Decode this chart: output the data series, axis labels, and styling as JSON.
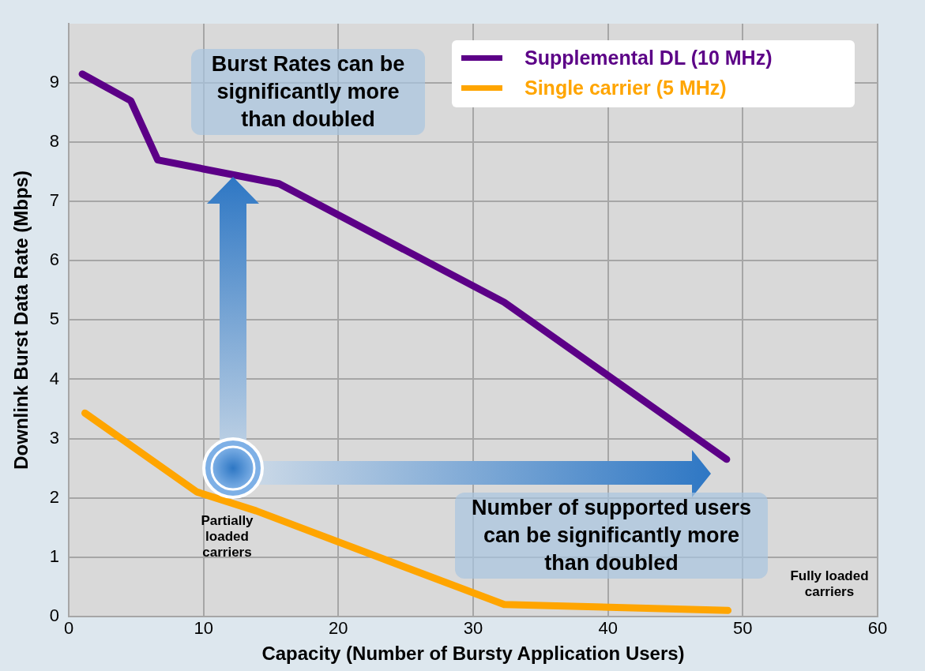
{
  "chart_data": {
    "type": "line",
    "xlabel": "Capacity (Number of Bursty Application Users)",
    "ylabel": "Downlink Burst Data Rate (Mbps)",
    "xlim": [
      0,
      60
    ],
    "xticks": [
      0,
      10,
      20,
      30,
      40,
      50,
      60
    ],
    "ylim": [
      0,
      10
    ],
    "yticks": [
      0,
      1,
      2,
      3,
      4,
      5,
      6,
      7,
      8,
      9
    ],
    "grid": true,
    "legend": "top right",
    "marker": "none",
    "line_style": "solid",
    "series": [
      {
        "name": "Supplemental DL (10 MHz)",
        "color": "#5c0087",
        "x": [
          1,
          4.6,
          6.6,
          15.6,
          32.3,
          48.8
        ],
        "values": [
          9.15,
          8.7,
          7.7,
          7.3,
          5.3,
          2.65
        ]
      },
      {
        "name": "Single carrier (5 MHz)",
        "color": "#ffa500",
        "x": [
          1.2,
          9.5,
          13.9,
          32.3,
          48.9
        ],
        "values": [
          3.43,
          2.1,
          1.78,
          0.2,
          0.1
        ]
      }
    ],
    "annotations": [
      "Burst Rates can be significantly more than doubled",
      "Number of supported users can be significantly more than doubled",
      "Partially loaded carriers",
      "Fully loaded carriers"
    ]
  }
}
